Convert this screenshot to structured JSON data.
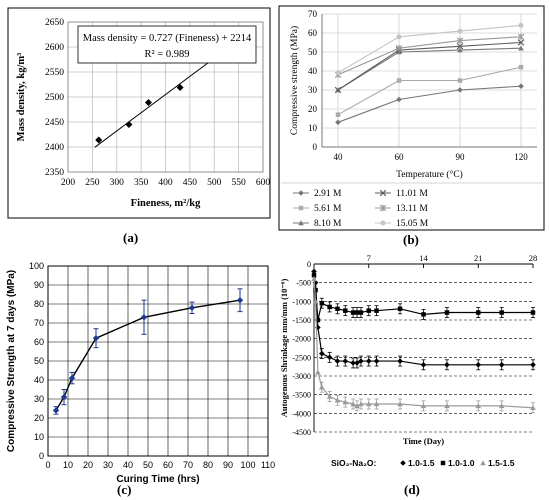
{
  "panel_labels": {
    "a": "(a)",
    "b": "(b)",
    "c": "(c)",
    "d": "(d)"
  },
  "chart_data": [
    {
      "panel": "a",
      "type": "scatter",
      "xlabel": "Fineness, m²/kg",
      "ylabel": "Mass density, kg/m³",
      "xlim": [
        200,
        600
      ],
      "ylim": [
        2350,
        2650
      ],
      "xticks": [
        200,
        250,
        300,
        350,
        400,
        450,
        500,
        550,
        600
      ],
      "yticks": [
        2350,
        2400,
        2450,
        2500,
        2550,
        2600,
        2650
      ],
      "grid": true,
      "points": {
        "x": [
          263,
          325,
          365,
          430,
          540
        ],
        "y": [
          2414,
          2445,
          2489,
          2519,
          2615
        ]
      },
      "trendline": {
        "slope": 0.727,
        "intercept": 2214
      },
      "annotation_line1": "Mass density = 0.727 (Fineness) + 2214",
      "annotation_line2": "R² = 0.989",
      "marker_color": "#000000"
    },
    {
      "panel": "b",
      "type": "line",
      "xlabel": "Temperature (°C)",
      "ylabel": "Compressive strength (MPa)",
      "categories": [
        "40",
        "60",
        "90",
        "120"
      ],
      "ylim": [
        0,
        70
      ],
      "yticks": [
        0,
        10,
        20,
        30,
        40,
        50,
        60,
        70
      ],
      "grid": true,
      "legend_position": "bottom",
      "series": [
        {
          "name": "2.91 M",
          "values": [
            13,
            25,
            30,
            32
          ],
          "color": "#777777",
          "marker": "diamond"
        },
        {
          "name": "5.61 M",
          "values": [
            17,
            35,
            35,
            42
          ],
          "color": "#a9a9a9",
          "marker": "square"
        },
        {
          "name": "8.10 M",
          "values": [
            30,
            50,
            51,
            52
          ],
          "color": "#7a7a7a",
          "marker": "triangle"
        },
        {
          "name": "11.01 M",
          "values": [
            30,
            51,
            53,
            55
          ],
          "color": "#5e5e5e",
          "marker": "x"
        },
        {
          "name": "13.11 M",
          "values": [
            38,
            52,
            56,
            58
          ],
          "color": "#9a9a9a",
          "marker": "star"
        },
        {
          "name": "15.05 M",
          "values": [
            39,
            58,
            61,
            64
          ],
          "color": "#c4c4c4",
          "marker": "circle"
        }
      ]
    },
    {
      "panel": "c",
      "type": "line",
      "xlabel": "Curing Time (hrs)",
      "ylabel": "Compressive Strength at 7 days (MPa)",
      "xlim": [
        0,
        110
      ],
      "ylim": [
        0,
        100
      ],
      "xticks": [
        0,
        10,
        20,
        30,
        40,
        50,
        60,
        70,
        80,
        90,
        100,
        110
      ],
      "yticks": [
        0,
        10,
        20,
        30,
        40,
        50,
        60,
        70,
        80,
        90,
        100
      ],
      "grid": true,
      "x": [
        4,
        8,
        12,
        24,
        48,
        72,
        96
      ],
      "y": [
        24,
        31,
        41,
        62,
        73,
        78,
        82
      ],
      "error": [
        2,
        4,
        3,
        5,
        9,
        3,
        6
      ],
      "marker_color": "#1f3a93",
      "line_color": "#000000"
    },
    {
      "panel": "d",
      "type": "line",
      "xlabel": "Time (Day)",
      "ylabel": "Autogenous Shrinkage mm/mm (10⁻⁶)",
      "xlim": [
        0,
        28
      ],
      "ylim": [
        -4500,
        0
      ],
      "xticks": [
        7,
        14,
        21,
        28
      ],
      "yticks": [
        0,
        -500,
        -1000,
        -1500,
        -2000,
        -2500,
        -3000,
        -3500,
        -4000,
        -4500
      ],
      "grid": true,
      "grid_style": "dashed",
      "legend_prefix": "SiO₂-Na₂O:",
      "legend_position": "bottom",
      "series": [
        {
          "name": "1.0-1.5",
          "x": [
            0,
            0.2,
            0.5,
            1,
            2,
            3,
            4,
            5,
            5.5,
            6,
            7,
            8,
            11,
            14,
            17,
            21,
            24,
            28
          ],
          "y": [
            -200,
            -500,
            -1700,
            -2400,
            -2500,
            -2600,
            -2600,
            -2650,
            -2650,
            -2600,
            -2600,
            -2600,
            -2600,
            -2700,
            -2700,
            -2700,
            -2700,
            -2700
          ],
          "color": "#000000",
          "marker": "diamond"
        },
        {
          "name": "1.0-1.0",
          "x": [
            0,
            0.2,
            0.5,
            1,
            2,
            3,
            4,
            5,
            5.5,
            6,
            7,
            8,
            11,
            14,
            17,
            21,
            24,
            28
          ],
          "y": [
            -300,
            -700,
            -1500,
            -1050,
            -1150,
            -1200,
            -1250,
            -1300,
            -1300,
            -1300,
            -1250,
            -1250,
            -1200,
            -1350,
            -1300,
            -1300,
            -1300,
            -1300
          ],
          "color": "#000000",
          "marker": "square"
        },
        {
          "name": "1.5-1.5",
          "x": [
            0,
            0.2,
            0.5,
            1,
            2,
            3,
            4,
            5,
            5.5,
            6,
            7,
            8,
            11,
            14,
            17,
            21,
            24,
            28
          ],
          "y": [
            -400,
            -1000,
            -2900,
            -3300,
            -3550,
            -3650,
            -3700,
            -3750,
            -3800,
            -3750,
            -3750,
            -3750,
            -3750,
            -3800,
            -3800,
            -3800,
            -3800,
            -3850
          ],
          "color": "#9a9a9a",
          "marker": "triangle"
        }
      ]
    }
  ]
}
